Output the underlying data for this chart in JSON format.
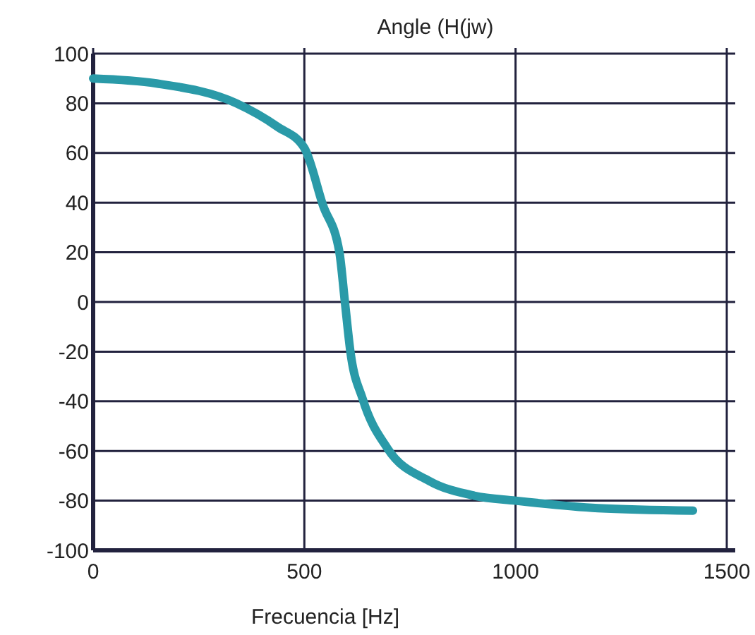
{
  "chart_data": {
    "type": "line",
    "title": "Angle (H(jw)",
    "xlabel": "Frecuencia [Hz]",
    "x": [
      0,
      150,
      339,
      436,
      500,
      544,
      583,
      596,
      609,
      638,
      697,
      795,
      902,
      1000,
      1195,
      1420
    ],
    "series": [
      {
        "color": "#2a9aa8",
        "values": [
          90,
          88,
          80,
          70.6,
          62,
          39,
          20,
          0,
          -20,
          -39,
          -59,
          -72,
          -78,
          -80,
          -83,
          -84
        ]
      }
    ],
    "xlim": [
      0,
      1500
    ],
    "xticks": [
      0,
      500,
      1000,
      1500
    ],
    "ylim": [
      -100,
      100
    ],
    "yticks": [
      -100,
      -80,
      -60,
      -40,
      -20,
      0,
      20,
      40,
      60,
      80,
      100
    ],
    "grid": true,
    "marker": "none",
    "line_style": "solid"
  }
}
